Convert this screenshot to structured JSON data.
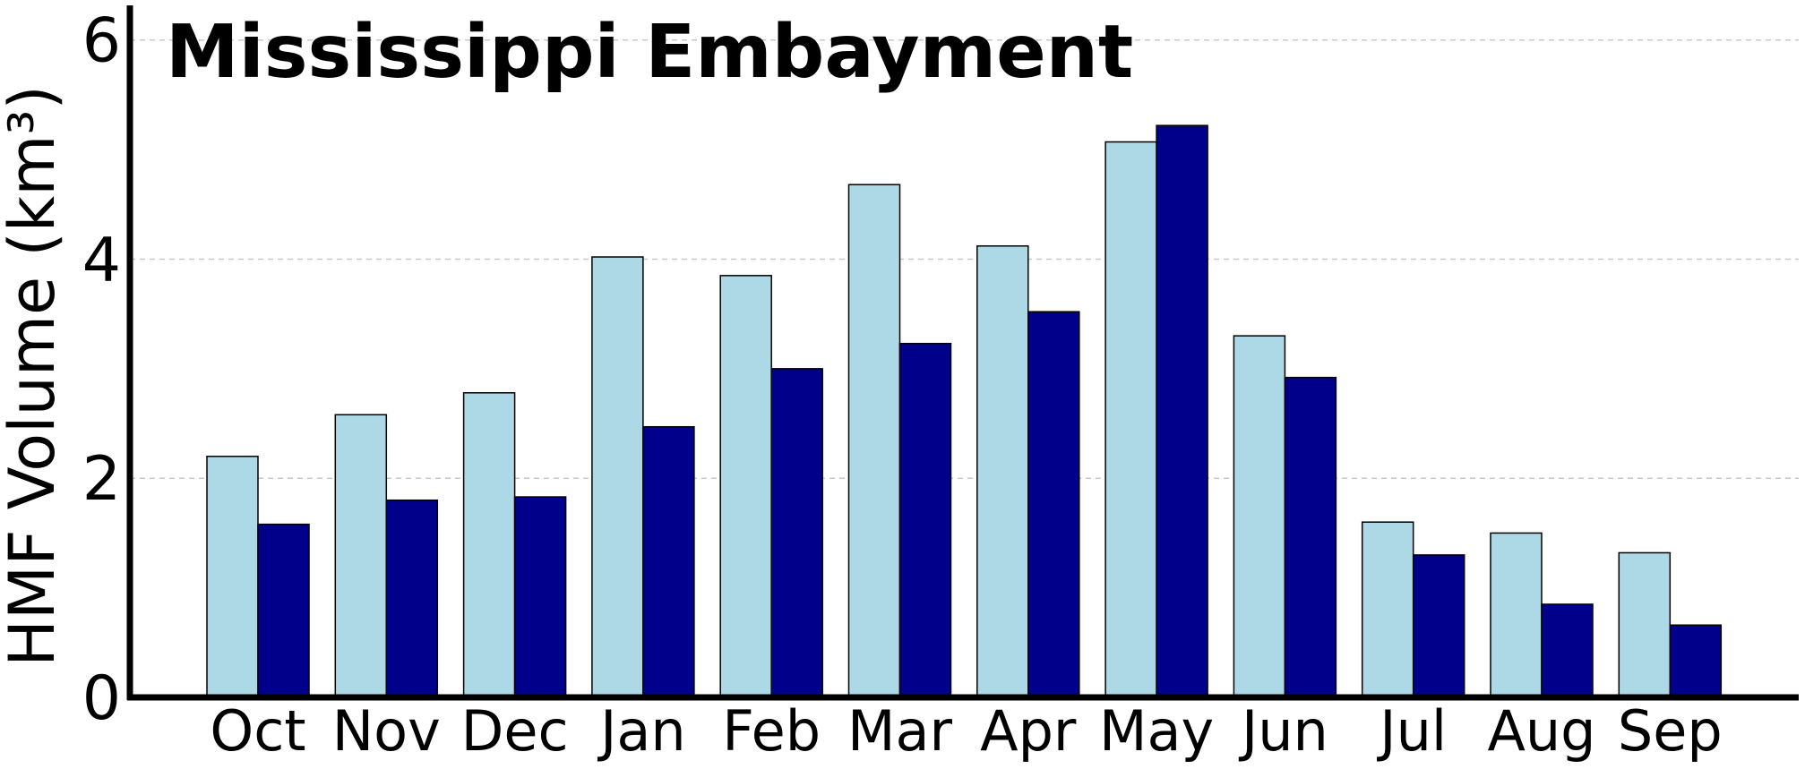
{
  "chart_data": {
    "type": "bar",
    "title": "Mississippi Embayment",
    "ylabel": "HMF Volume (km³)",
    "xlabel": "",
    "categories": [
      "Oct",
      "Nov",
      "Dec",
      "Jan",
      "Feb",
      "Mar",
      "Apr",
      "May",
      "Jun",
      "Jul",
      "Aug",
      "Sep"
    ],
    "ylim": [
      0,
      6.3
    ],
    "yticks": [
      0,
      2,
      4,
      6
    ],
    "grid": "horizontal-dashed",
    "series": [
      {
        "color": "#add8e6",
        "values": [
          2.2,
          2.58,
          2.78,
          4.02,
          3.85,
          4.68,
          4.12,
          5.07,
          3.3,
          1.6,
          1.5,
          1.32
        ]
      },
      {
        "color": "#00008b",
        "values": [
          1.58,
          1.8,
          1.83,
          2.47,
          3.0,
          3.23,
          3.52,
          5.22,
          2.92,
          1.3,
          0.85,
          0.66
        ]
      }
    ]
  }
}
